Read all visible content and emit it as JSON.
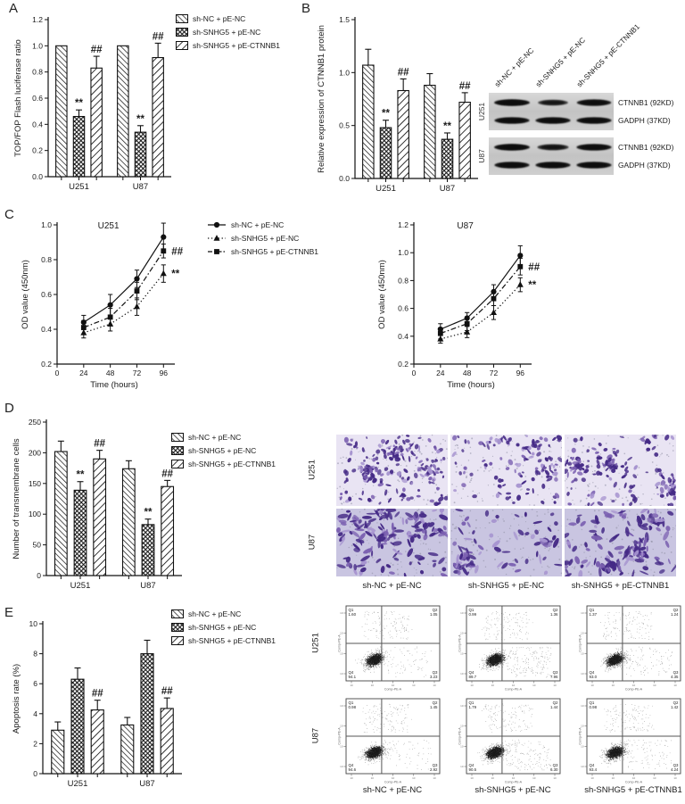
{
  "page": {
    "bg": "#ffffff",
    "ink": "#1a1a1a"
  },
  "panel_letters": {
    "a": "A",
    "b": "B",
    "c": "C",
    "d": "D",
    "e": "E"
  },
  "groups": [
    "sh-NC + pE-NC",
    "sh-SNHG5 + pE-NC",
    "sh-SNHG5 + pE-CTNNB1"
  ],
  "legend_bar": [
    {
      "label": "sh-NC + pE-NC",
      "pattern": "back"
    },
    {
      "label": "sh-SNHG5 + pE-NC",
      "pattern": "cross"
    },
    {
      "label": "sh-SNHG5 + pE-CTNNB1",
      "pattern": "fwd"
    }
  ],
  "legend_line": [
    {
      "label": "sh-NC + pE-NC",
      "marker": "circle",
      "linestyle": "solid"
    },
    {
      "label": "sh-SNHG5 + pE-NC",
      "marker": "triangle",
      "linestyle": "dotted"
    },
    {
      "label": "sh-SNHG5 + pE-CTNNB1",
      "marker": "square",
      "linestyle": "dashdot"
    }
  ],
  "chart_data": [
    {
      "id": "chartA",
      "type": "bar",
      "ylabel": "TOP/FOP Flash luciferase ratio",
      "ylim": [
        0,
        1.2
      ],
      "yticks": [
        "0.0",
        "0.2",
        "0.4",
        "0.6",
        "0.8",
        "1.0",
        "1.2"
      ],
      "categories": [
        "U251",
        "U87"
      ],
      "series": [
        {
          "name": "sh-NC + pE-NC",
          "pattern": "back",
          "values": [
            1.0,
            1.0
          ],
          "errors": [
            0,
            0
          ],
          "sig": [
            "",
            ""
          ]
        },
        {
          "name": "sh-SNHG5 + pE-NC",
          "pattern": "cross",
          "values": [
            0.46,
            0.34
          ],
          "errors": [
            0.05,
            0.05
          ],
          "sig": [
            "**",
            "**"
          ]
        },
        {
          "name": "sh-SNHG5 + pE-CTNNB1",
          "pattern": "fwd",
          "values": [
            0.83,
            0.91
          ],
          "errors": [
            0.09,
            0.11
          ],
          "sig": [
            "##",
            "##"
          ]
        }
      ]
    },
    {
      "id": "chartB",
      "type": "bar",
      "ylabel": "Relative expression of CTNNB1 protein",
      "ylim": [
        0,
        1.5
      ],
      "yticks": [
        "0.0",
        "0.5",
        "1.0",
        "1.5"
      ],
      "categories": [
        "U251",
        "U87"
      ],
      "series": [
        {
          "name": "sh-NC + pE-NC",
          "pattern": "back",
          "values": [
            1.07,
            0.88
          ],
          "errors": [
            0.15,
            0.11
          ],
          "sig": [
            "",
            ""
          ]
        },
        {
          "name": "sh-SNHG5 + pE-NC",
          "pattern": "cross",
          "values": [
            0.48,
            0.37
          ],
          "errors": [
            0.07,
            0.06
          ],
          "sig": [
            "**",
            "**"
          ]
        },
        {
          "name": "sh-SNHG5 + pE-CTNNB1",
          "pattern": "fwd",
          "values": [
            0.83,
            0.72
          ],
          "errors": [
            0.11,
            0.09
          ],
          "sig": [
            "##",
            "##"
          ]
        }
      ]
    },
    {
      "id": "chartC1",
      "type": "line",
      "title": "U251",
      "xlabel": "Time (hours)",
      "ylabel": "OD value (450nm)",
      "xlim": [
        0,
        103
      ],
      "xticks": [
        0,
        24,
        48,
        72,
        96
      ],
      "ylim": [
        0.2,
        1.0
      ],
      "yticks": [
        "0.2",
        "0.4",
        "0.6",
        "0.8",
        "1.0"
      ],
      "x": [
        24,
        48,
        72,
        96
      ],
      "series": [
        {
          "name": "sh-NC + pE-NC",
          "marker": "circle",
          "linestyle": "solid",
          "values": [
            0.44,
            0.54,
            0.69,
            0.93
          ],
          "errors": [
            0.04,
            0.06,
            0.05,
            0.08
          ],
          "endsig": ""
        },
        {
          "name": "sh-SNHG5 + pE-NC",
          "marker": "triangle",
          "linestyle": "dotted",
          "values": [
            0.38,
            0.43,
            0.53,
            0.72
          ],
          "errors": [
            0.03,
            0.04,
            0.05,
            0.05
          ],
          "endsig": "**"
        },
        {
          "name": "sh-SNHG5 + pE-CTNNB1",
          "marker": "square",
          "linestyle": "dashdot",
          "values": [
            0.41,
            0.47,
            0.62,
            0.85
          ],
          "errors": [
            0.04,
            0.05,
            0.05,
            0.04
          ],
          "endsig": "##"
        }
      ]
    },
    {
      "id": "chartC2",
      "type": "line",
      "title": "U87",
      "xlabel": "Time (hours)",
      "ylabel": "OD value (450nm)",
      "xlim": [
        0,
        103
      ],
      "xticks": [
        0,
        24,
        48,
        72,
        96
      ],
      "ylim": [
        0.2,
        1.2
      ],
      "yticks": [
        "0.2",
        "0.4",
        "0.6",
        "0.8",
        "1.0",
        "1.2"
      ],
      "x": [
        24,
        48,
        72,
        96
      ],
      "series": [
        {
          "name": "sh-NC + pE-NC",
          "marker": "circle",
          "linestyle": "solid",
          "values": [
            0.45,
            0.53,
            0.72,
            0.98
          ],
          "errors": [
            0.04,
            0.04,
            0.05,
            0.07
          ],
          "endsig": ""
        },
        {
          "name": "sh-SNHG5 + pE-NC",
          "marker": "triangle",
          "linestyle": "dotted",
          "values": [
            0.38,
            0.43,
            0.57,
            0.77
          ],
          "errors": [
            0.03,
            0.04,
            0.05,
            0.05
          ],
          "endsig": "**"
        },
        {
          "name": "sh-SNHG5 + pE-CTNNB1",
          "marker": "square",
          "linestyle": "dashdot",
          "values": [
            0.42,
            0.49,
            0.67,
            0.9
          ],
          "errors": [
            0.04,
            0.05,
            0.05,
            0.06
          ],
          "endsig": "##"
        }
      ]
    },
    {
      "id": "chartD",
      "type": "bar",
      "ylabel": "Number of transmembrane cells",
      "ylim": [
        0,
        250
      ],
      "yticks": [
        "0",
        "50",
        "100",
        "150",
        "200",
        "250"
      ],
      "categories": [
        "U251",
        "U87"
      ],
      "series": [
        {
          "name": "sh-NC + pE-NC",
          "pattern": "back",
          "values": [
            202,
            174
          ],
          "errors": [
            17,
            13
          ],
          "sig": [
            "",
            ""
          ]
        },
        {
          "name": "sh-SNHG5 + pE-NC",
          "pattern": "cross",
          "values": [
            139,
            83
          ],
          "errors": [
            14,
            9
          ],
          "sig": [
            "**",
            "**"
          ]
        },
        {
          "name": "sh-SNHG5 + pE-CTNNB1",
          "pattern": "fwd",
          "values": [
            190,
            145
          ],
          "errors": [
            14,
            10
          ],
          "sig": [
            "##",
            "##"
          ]
        }
      ]
    },
    {
      "id": "chartE",
      "type": "bar",
      "ylabel": "Apoptosis rate (%)",
      "ylim": [
        0,
        10
      ],
      "yticks": [
        "0",
        "2",
        "4",
        "6",
        "8",
        "10"
      ],
      "categories": [
        "U251",
        "U87"
      ],
      "series": [
        {
          "name": "sh-NC + pE-NC",
          "pattern": "back",
          "values": [
            2.9,
            3.25
          ],
          "errors": [
            0.55,
            0.5
          ],
          "sig": [
            "",
            ""
          ]
        },
        {
          "name": "sh-SNHG5 + pE-NC",
          "pattern": "cross",
          "values": [
            6.3,
            8.0
          ],
          "errors": [
            0.75,
            0.9
          ],
          "sig": [
            "",
            ""
          ]
        },
        {
          "name": "sh-SNHG5 + pE-CTNNB1",
          "pattern": "fwd",
          "values": [
            4.25,
            4.35
          ],
          "errors": [
            0.65,
            0.7
          ],
          "sig": [
            "##",
            "##"
          ]
        }
      ]
    }
  ],
  "western_blot": {
    "lane_labels": [
      "sh-NC + pE-NC",
      "sh-SNHG5 + pE-NC",
      "sh-SNHG5 + pE-CTNNB1"
    ],
    "blocks": [
      {
        "cell_line": "U251",
        "rows": [
          {
            "label": "CTNNB1 (92KD)",
            "intensities": [
              1.0,
              0.55,
              0.9
            ]
          },
          {
            "label": "GADPH (37KD)",
            "intensities": [
              0.95,
              0.95,
              0.95
            ]
          }
        ]
      },
      {
        "cell_line": "U87",
        "rows": [
          {
            "label": "CTNNB1 (92KD)",
            "intensities": [
              1.0,
              0.65,
              0.95
            ]
          },
          {
            "label": "GADPH (37KD)",
            "intensities": [
              0.95,
              0.95,
              0.95
            ]
          }
        ]
      }
    ]
  },
  "transwell": {
    "row_labels": [
      "U251",
      "U87"
    ],
    "col_labels": [
      "sh-NC + pE-NC",
      "sh-SNHG5 + pE-NC",
      "sh-SNHG5 + pE-CTNNB1"
    ],
    "cell_counts": [
      [
        202,
        139,
        190
      ],
      [
        174,
        83,
        145
      ]
    ],
    "bg_colors": [
      "#e9e4f3",
      "#c9c5e1"
    ],
    "stain_dark": "#452a86",
    "stain_mid": "#7a5fb0",
    "stain_light": "#a693cf"
  },
  "flow": {
    "row_labels": [
      "U251",
      "U87"
    ],
    "col_labels": [
      "sh-NC + pE-NC",
      "sh-SNHG5 + pE-NC",
      "sh-SNHG5 + pE-CTNNB1"
    ],
    "quadrants": [
      "Q1",
      "Q2",
      "Q3",
      "Q4"
    ],
    "axis_label": "Comp-PE-A",
    "plots": [
      [
        {
          "q1": "1.60",
          "q2": "1.05",
          "q3": "3.23",
          "q4": "94.1"
        },
        {
          "q1": "0.99",
          "q2": "1.36",
          "q3": "7.96",
          "q4": "89.7"
        },
        {
          "q1": "1.37",
          "q2": "1.24",
          "q3": "4.35",
          "q4": "93.0"
        }
      ],
      [
        {
          "q1": "0.98",
          "q2": "1.45",
          "q3": "2.92",
          "q4": "94.6"
        },
        {
          "q1": "1.79",
          "q2": "1.44",
          "q3": "6.30",
          "q4": "90.5"
        },
        {
          "q1": "0.98",
          "q2": "1.42",
          "q3": "4.24",
          "q4": "93.4"
        }
      ]
    ]
  }
}
